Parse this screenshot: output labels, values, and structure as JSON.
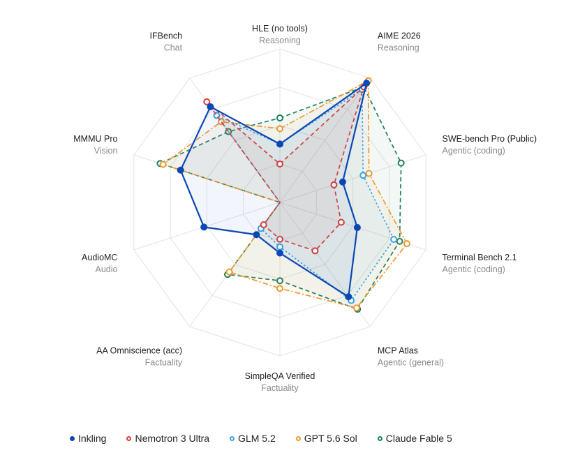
{
  "chart_data": {
    "type": "radar",
    "title": "",
    "axes": [
      {
        "name": "HLE (no tools)",
        "category": "Reasoning"
      },
      {
        "name": "AIME 2026",
        "category": "Reasoning"
      },
      {
        "name": "SWE-bench Pro (Public)",
        "category": "Agentic (coding)"
      },
      {
        "name": "Terminal Bench 2.1",
        "category": "Agentic (coding)"
      },
      {
        "name": "MCP Atlas",
        "category": "Agentic (general)"
      },
      {
        "name": "SimpleQA Verified",
        "category": "Factuality"
      },
      {
        "name": "AA Omniscience (acc)",
        "category": "Factuality"
      },
      {
        "name": "AudioMC",
        "category": "Audio"
      },
      {
        "name": "MMMU Pro",
        "category": "Vision"
      },
      {
        "name": "IFBench",
        "category": "Chat"
      }
    ],
    "range": [
      0,
      1
    ],
    "grid": true,
    "legend_position": "bottom",
    "series": [
      {
        "name": "Inkling",
        "color": "#0b47b5",
        "style": "solid",
        "marker": "filled",
        "values": [
          0.38,
          0.96,
          0.43,
          0.53,
          0.76,
          0.33,
          0.26,
          0.52,
          0.68,
          0.77
        ]
      },
      {
        "name": "Nemotron 3 Ultra",
        "color": "#d9413b",
        "style": "dashed",
        "marker": "open",
        "values": [
          0.25,
          0.93,
          0.37,
          0.42,
          0.39,
          0.24,
          0.18,
          null,
          null,
          0.81
        ]
      },
      {
        "name": "GLM 5.2",
        "color": "#3aa4e0",
        "style": "dotted",
        "marker": "open",
        "values": [
          0.38,
          0.91,
          0.57,
          0.78,
          0.79,
          0.29,
          0.21,
          null,
          null,
          0.7
        ]
      },
      {
        "name": "GPT 5.6 Sol",
        "color": "#ec9a2e",
        "style": "dashdot",
        "marker": "open",
        "values": [
          0.48,
          0.98,
          0.61,
          0.87,
          0.85,
          0.56,
          0.56,
          null,
          0.8,
          0.65
        ]
      },
      {
        "name": "Claude Fable 5",
        "color": "#1c7f5c",
        "style": "dashed",
        "marker": "open",
        "values": [
          0.55,
          0.93,
          0.83,
          0.82,
          0.86,
          0.51,
          0.58,
          null,
          0.82,
          0.57
        ]
      }
    ]
  }
}
